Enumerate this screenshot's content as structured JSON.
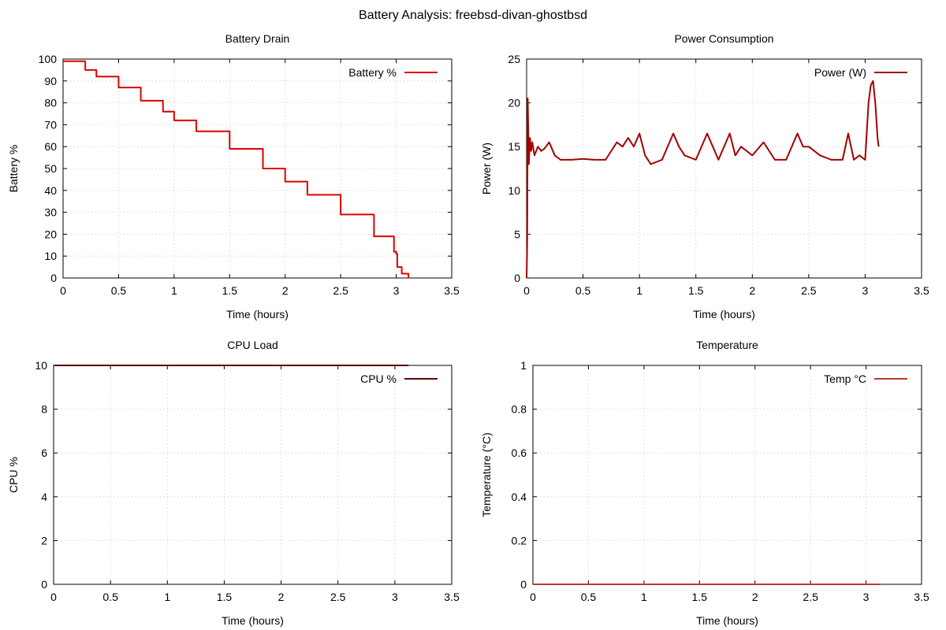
{
  "figure": {
    "title": "Battery Analysis: freebsd-divan-ghostbsd"
  },
  "chart_data": [
    {
      "type": "line",
      "title": "Battery Drain",
      "xlabel": "Time (hours)",
      "ylabel": "Battery %",
      "xlim": [
        0,
        3.5
      ],
      "ylim": [
        0,
        100
      ],
      "xticks": [
        0,
        0.5,
        1,
        1.5,
        2,
        2.5,
        3,
        3.5
      ],
      "yticks": [
        0,
        10,
        20,
        30,
        40,
        50,
        60,
        70,
        80,
        90,
        100
      ],
      "grid": true,
      "legend_position": "top-right",
      "step": true,
      "series": [
        {
          "name": "Battery %",
          "color": "#dd0000",
          "x": [
            0,
            0.1,
            0.2,
            0.3,
            0.5,
            0.7,
            0.9,
            1.0,
            1.2,
            1.5,
            1.8,
            2.0,
            2.2,
            2.5,
            2.8,
            2.98,
            3.0,
            3.01,
            3.05,
            3.11
          ],
          "y": [
            99,
            99,
            95,
            92,
            87,
            81,
            76,
            72,
            67,
            59,
            50,
            44,
            38,
            29,
            19,
            12,
            11,
            5,
            2,
            0
          ]
        }
      ]
    },
    {
      "type": "line",
      "title": "Power Consumption",
      "xlabel": "Time (hours)",
      "ylabel": "Power (W)",
      "xlim": [
        0,
        3.5
      ],
      "ylim": [
        0,
        25
      ],
      "xticks": [
        0,
        0.5,
        1,
        1.5,
        2,
        2.5,
        3,
        3.5
      ],
      "yticks": [
        0,
        5,
        10,
        15,
        20,
        25
      ],
      "grid": true,
      "legend_position": "top-right",
      "series": [
        {
          "name": "Power (W)",
          "color": "#a30000",
          "x": [
            0,
            0.005,
            0.01,
            0.02,
            0.03,
            0.04,
            0.05,
            0.07,
            0.1,
            0.13,
            0.16,
            0.2,
            0.25,
            0.3,
            0.4,
            0.5,
            0.6,
            0.7,
            0.8,
            0.85,
            0.9,
            0.95,
            1.0,
            1.05,
            1.1,
            1.2,
            1.25,
            1.3,
            1.35,
            1.4,
            1.5,
            1.6,
            1.7,
            1.8,
            1.85,
            1.9,
            2.0,
            2.1,
            2.2,
            2.3,
            2.4,
            2.45,
            2.5,
            2.6,
            2.7,
            2.8,
            2.85,
            2.9,
            2.95,
            3.0,
            3.03,
            3.05,
            3.07,
            3.09,
            3.11,
            3.12
          ],
          "y": [
            0,
            4,
            20.5,
            13,
            16,
            14.5,
            15.5,
            14,
            15,
            14.5,
            14.8,
            15.5,
            14,
            13.5,
            13.5,
            13.6,
            13.5,
            13.5,
            15.5,
            15,
            16,
            15,
            16.5,
            14,
            13,
            13.5,
            15,
            16.5,
            15,
            14,
            13.5,
            16.5,
            13.5,
            16.5,
            14,
            15,
            14,
            15.5,
            13.5,
            13.5,
            16.5,
            15,
            15,
            14,
            13.5,
            13.5,
            16.5,
            13.5,
            14,
            13.5,
            20,
            22,
            22.5,
            20,
            16,
            15
          ]
        }
      ]
    },
    {
      "type": "line",
      "title": "CPU Load",
      "xlabel": "Time (hours)",
      "ylabel": "CPU %",
      "xlim": [
        0,
        3.5
      ],
      "ylim": [
        0,
        10
      ],
      "xticks": [
        0,
        0.5,
        1,
        1.5,
        2,
        2.5,
        3,
        3.5
      ],
      "yticks": [
        0,
        2,
        4,
        6,
        8,
        10
      ],
      "grid": true,
      "legend_position": "top-right",
      "series": [
        {
          "name": "CPU %",
          "color": "#5a0000",
          "x": [
            0,
            3.12
          ],
          "y": [
            10,
            10
          ]
        }
      ]
    },
    {
      "type": "line",
      "title": "Temperature",
      "xlabel": "Time (hours)",
      "ylabel": "Temperature (°C)",
      "xlim": [
        0,
        3.5
      ],
      "ylim": [
        0,
        1
      ],
      "xticks": [
        0,
        0.5,
        1,
        1.5,
        2,
        2.5,
        3,
        3.5
      ],
      "yticks": [
        0,
        0.2,
        0.4,
        0.6,
        0.8,
        1
      ],
      "grid": true,
      "legend_position": "top-right",
      "series": [
        {
          "name": "Temp °C",
          "color": "#b83a2a",
          "x": [
            0,
            3.12
          ],
          "y": [
            0,
            0
          ]
        }
      ]
    }
  ]
}
